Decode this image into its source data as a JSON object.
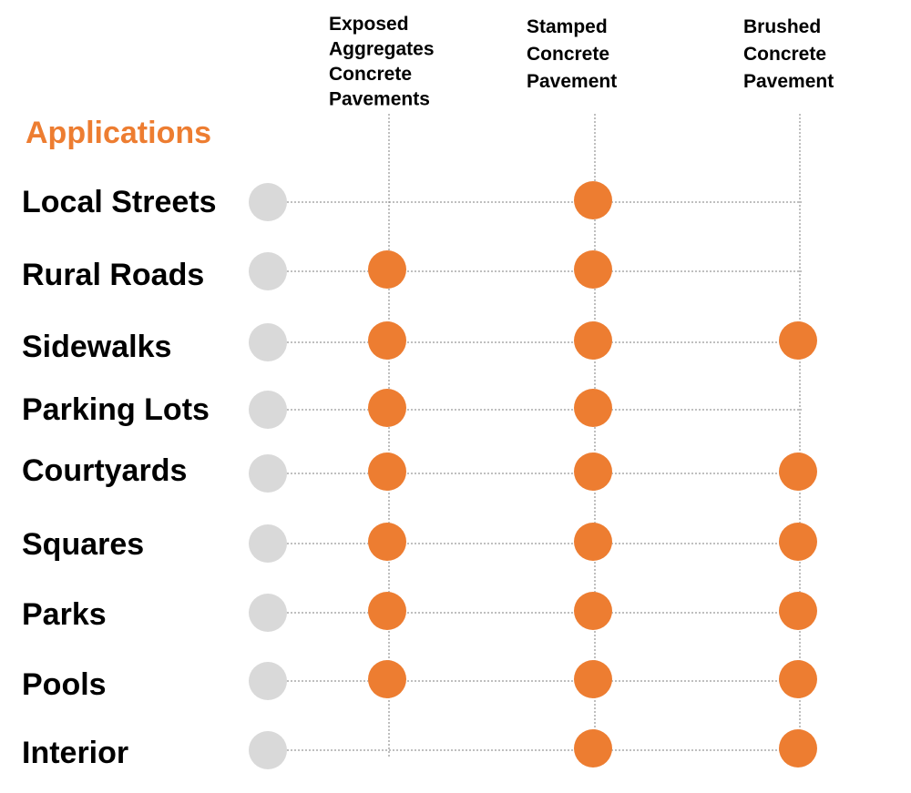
{
  "title": "Applications",
  "columns": [
    {
      "label": [
        "Exposed",
        "Aggregates",
        "Concrete",
        "Pavements"
      ]
    },
    {
      "label": [
        "Stamped",
        "Concrete",
        "Pavement"
      ]
    },
    {
      "label": [
        "Brushed",
        "Concrete",
        "Pavement"
      ]
    }
  ],
  "rows": [
    {
      "label": "Local Streets",
      "cells": [
        false,
        true,
        false
      ]
    },
    {
      "label": "Rural Roads",
      "cells": [
        true,
        true,
        false
      ]
    },
    {
      "label": "Sidewalks",
      "cells": [
        true,
        true,
        true
      ]
    },
    {
      "label": "Parking Lots",
      "cells": [
        true,
        true,
        false
      ]
    },
    {
      "label": "Courtyards",
      "cells": [
        true,
        true,
        true
      ]
    },
    {
      "label": "Squares",
      "cells": [
        true,
        true,
        true
      ]
    },
    {
      "label": "Parks",
      "cells": [
        true,
        true,
        true
      ]
    },
    {
      "label": "Pools",
      "cells": [
        true,
        true,
        true
      ]
    },
    {
      "label": "Interior",
      "cells": [
        false,
        true,
        true
      ]
    }
  ],
  "colors": {
    "accent": "#ED7D31",
    "row_marker": "#D9D9D9",
    "gridline": "#7F7F7F"
  }
}
